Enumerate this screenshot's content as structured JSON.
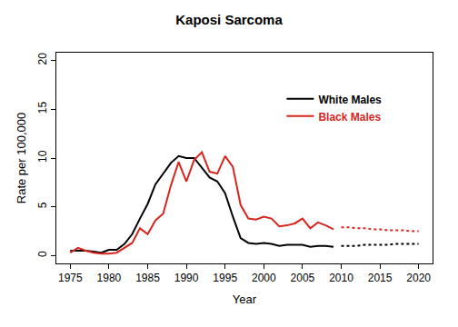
{
  "chart_data": {
    "type": "line",
    "title": "Kaposi Sarcoma",
    "x_label": "Year",
    "y_label": "Rate per 100,000",
    "x": [
      1975,
      1976,
      1977,
      1978,
      1979,
      1980,
      1981,
      1982,
      1983,
      1984,
      1985,
      1986,
      1987,
      1988,
      1989,
      1990,
      1991,
      1992,
      1993,
      1994,
      1995,
      1996,
      1997,
      1998,
      1999,
      2000,
      2001,
      2002,
      2003,
      2004,
      2005,
      2006,
      2007,
      2008,
      2009,
      2010,
      2011,
      2012,
      2013,
      2014,
      2015,
      2016,
      2017,
      2018,
      2019,
      2020
    ],
    "series": [
      {
        "name": "White Males",
        "color": "#000000",
        "line_style": "solid",
        "values": [
          0.5,
          0.5,
          0.5,
          0.4,
          0.3,
          0.6,
          0.6,
          1.2,
          2.2,
          3.8,
          5.3,
          7.3,
          8.4,
          9.5,
          10.2,
          10.0,
          10.0,
          9.0,
          8.0,
          7.6,
          6.4,
          4.0,
          1.8,
          1.3,
          1.2,
          1.3,
          1.2,
          1.0,
          1.1,
          1.1,
          1.1,
          0.9,
          1.0,
          1.0,
          0.9,
          null,
          null,
          null,
          null,
          null,
          null,
          null,
          null,
          null,
          null,
          null
        ]
      },
      {
        "name": "Black Males",
        "color": "#d7261e",
        "line_style": "solid",
        "values": [
          0.3,
          0.8,
          0.5,
          0.3,
          0.2,
          0.2,
          0.3,
          0.8,
          1.3,
          2.8,
          2.2,
          3.6,
          4.3,
          7.2,
          9.6,
          7.6,
          9.8,
          10.6,
          8.6,
          8.4,
          10.2,
          9.1,
          5.2,
          3.8,
          3.7,
          4.0,
          3.8,
          3.0,
          3.1,
          3.3,
          3.8,
          2.8,
          3.4,
          3.1,
          2.7,
          null,
          null,
          null,
          null,
          null,
          null,
          null,
          null,
          null,
          null,
          null
        ]
      },
      {
        "color": "#000000",
        "line_style": "dotted",
        "values": [
          null,
          null,
          null,
          null,
          null,
          null,
          null,
          null,
          null,
          null,
          null,
          null,
          null,
          null,
          null,
          null,
          null,
          null,
          null,
          null,
          null,
          null,
          null,
          null,
          null,
          null,
          null,
          null,
          null,
          null,
          null,
          null,
          null,
          null,
          null,
          1.0,
          1.0,
          1.0,
          1.1,
          1.1,
          1.1,
          1.1,
          1.2,
          1.2,
          1.2,
          1.2
        ]
      },
      {
        "color": "#d7261e",
        "line_style": "dotted",
        "values": [
          null,
          null,
          null,
          null,
          null,
          null,
          null,
          null,
          null,
          null,
          null,
          null,
          null,
          null,
          null,
          null,
          null,
          null,
          null,
          null,
          null,
          null,
          null,
          null,
          null,
          null,
          null,
          null,
          null,
          null,
          null,
          null,
          null,
          null,
          null,
          2.9,
          2.9,
          2.8,
          2.8,
          2.7,
          2.7,
          2.6,
          2.6,
          2.6,
          2.5,
          2.5
        ]
      }
    ],
    "xlim": [
      1973.2,
      2021.8
    ],
    "xticks": [
      1975,
      1980,
      1985,
      1990,
      1995,
      2000,
      2005,
      2010,
      2015,
      2020
    ],
    "ylim": [
      -0.8,
      20.8
    ],
    "yticks": [
      0,
      5,
      10,
      15,
      20
    ],
    "grid": false,
    "legend": "right"
  }
}
